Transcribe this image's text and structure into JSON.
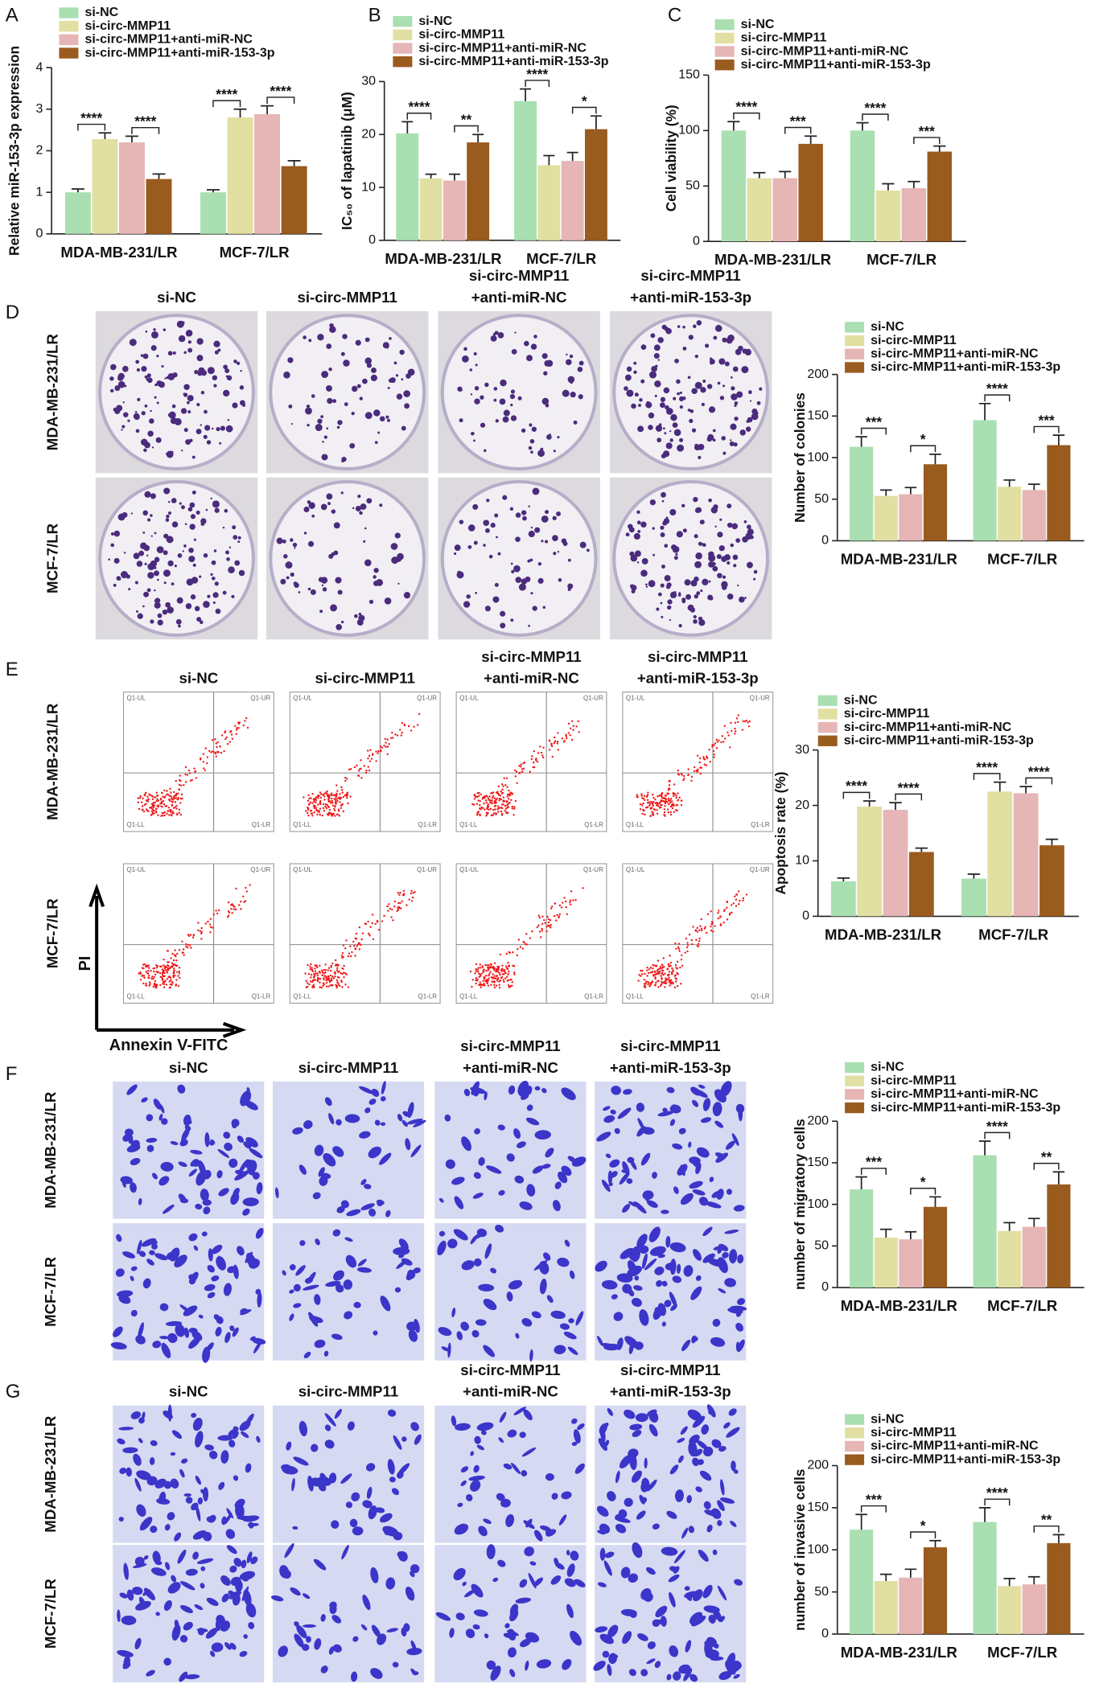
{
  "panel_labels": [
    "A",
    "B",
    "C",
    "D",
    "E",
    "F",
    "G"
  ],
  "chart_data": [
    {
      "type": "bar",
      "ylabel": "Relative miR-153-3p expression",
      "categories": [
        "MDA-MB-231/LR",
        "MCF-7/LR"
      ],
      "series": [
        {
          "name": "si-NC",
          "color": "#a9dfb1",
          "values": [
            1.0,
            1.0
          ],
          "errors": [
            0.08,
            0.06
          ]
        },
        {
          "name": "si-circ-MMP11",
          "color": "#e2dfa2",
          "values": [
            2.28,
            2.8
          ],
          "errors": [
            0.15,
            0.2
          ]
        },
        {
          "name": "si-circ-MMP11+anti-miR-NC",
          "color": "#e6b5b5",
          "values": [
            2.2,
            2.88
          ],
          "errors": [
            0.15,
            0.2
          ]
        },
        {
          "name": "si-circ-MMP11+anti-miR-153-3p",
          "color": "#9a5b1f",
          "values": [
            1.32,
            1.63
          ],
          "errors": [
            0.12,
            0.13
          ]
        }
      ],
      "ylim": [
        0,
        4
      ],
      "yticks": [
        0,
        1,
        2,
        3,
        4
      ],
      "significance": [
        [
          "****",
          "****"
        ],
        [
          "****",
          "****"
        ]
      ]
    },
    {
      "type": "bar",
      "ylabel": "IC₅₀ of lapatinib (μM)",
      "categories": [
        "MDA-MB-231/LR",
        "MCF-7/LR"
      ],
      "series": [
        {
          "name": "si-NC",
          "color": "#a9dfb1",
          "values": [
            20.2,
            26.3
          ],
          "errors": [
            2.2,
            2.3
          ]
        },
        {
          "name": "si-circ-MMP11",
          "color": "#e2dfa2",
          "values": [
            11.7,
            14.2
          ],
          "errors": [
            0.8,
            1.8
          ]
        },
        {
          "name": "si-circ-MMP11+anti-miR-NC",
          "color": "#e6b5b5",
          "values": [
            11.3,
            15.0
          ],
          "errors": [
            1.2,
            1.6
          ]
        },
        {
          "name": "si-circ-MMP11+anti-miR-153-3p",
          "color": "#9a5b1f",
          "values": [
            18.5,
            21.0
          ],
          "errors": [
            1.5,
            2.5
          ]
        }
      ],
      "ylim": [
        0,
        30
      ],
      "yticks": [
        0,
        10,
        20,
        30
      ],
      "significance": [
        [
          "****",
          "**"
        ],
        [
          "****",
          "*"
        ]
      ]
    },
    {
      "type": "bar",
      "ylabel": "Cell viability (%)",
      "categories": [
        "MDA-MB-231/LR",
        "MCF-7/LR"
      ],
      "series": [
        {
          "name": "si-NC",
          "color": "#a9dfb1",
          "values": [
            100,
            100
          ],
          "errors": [
            8,
            7
          ]
        },
        {
          "name": "si-circ-MMP11",
          "color": "#e2dfa2",
          "values": [
            57,
            46
          ],
          "errors": [
            5,
            6
          ]
        },
        {
          "name": "si-circ-MMP11+anti-miR-NC",
          "color": "#e6b5b5",
          "values": [
            57,
            48
          ],
          "errors": [
            6,
            6
          ]
        },
        {
          "name": "si-circ-MMP11+anti-miR-153-3p",
          "color": "#9a5b1f",
          "values": [
            88,
            81
          ],
          "errors": [
            7,
            5
          ]
        }
      ],
      "ylim": [
        0,
        150
      ],
      "yticks": [
        0,
        50,
        100,
        150
      ],
      "significance": [
        [
          "****",
          "***"
        ],
        [
          "****",
          "***"
        ]
      ]
    },
    {
      "type": "bar",
      "ylabel": "Number of colonies",
      "categories": [
        "MDA-MB-231/LR",
        "MCF-7/LR"
      ],
      "series": [
        {
          "name": "si-NC",
          "color": "#a9dfb1",
          "values": [
            113,
            145
          ],
          "errors": [
            12,
            20
          ]
        },
        {
          "name": "si-circ-MMP11",
          "color": "#e2dfa2",
          "values": [
            54,
            65
          ],
          "errors": [
            7,
            8
          ]
        },
        {
          "name": "si-circ-MMP11+anti-miR-NC",
          "color": "#e6b5b5",
          "values": [
            56,
            61
          ],
          "errors": [
            8,
            7
          ]
        },
        {
          "name": "si-circ-MMP11+anti-miR-153-3p",
          "color": "#9a5b1f",
          "values": [
            92,
            115
          ],
          "errors": [
            12,
            12
          ]
        }
      ],
      "ylim": [
        0,
        200
      ],
      "yticks": [
        0,
        50,
        100,
        150,
        200
      ],
      "significance": [
        [
          "***",
          "*"
        ],
        [
          "****",
          "***"
        ]
      ]
    },
    {
      "type": "bar",
      "ylabel": "Apoptosis rate (%)",
      "categories": [
        "MDA-MB-231/LR",
        "MCF-7/LR"
      ],
      "series": [
        {
          "name": "si-NC",
          "color": "#a9dfb1",
          "values": [
            6.3,
            6.8
          ],
          "errors": [
            0.6,
            0.8
          ]
        },
        {
          "name": "si-circ-MMP11",
          "color": "#e2dfa2",
          "values": [
            19.8,
            22.5
          ],
          "errors": [
            1.0,
            1.7
          ]
        },
        {
          "name": "si-circ-MMP11+anti-miR-NC",
          "color": "#e6b5b5",
          "values": [
            19.2,
            22.2
          ],
          "errors": [
            1.3,
            1.2
          ]
        },
        {
          "name": "si-circ-MMP11+anti-miR-153-3p",
          "color": "#9a5b1f",
          "values": [
            11.6,
            12.8
          ],
          "errors": [
            0.7,
            1.1
          ]
        }
      ],
      "ylim": [
        0,
        30
      ],
      "yticks": [
        0,
        10,
        20,
        30
      ],
      "significance": [
        [
          "****",
          "****"
        ],
        [
          "****",
          "****"
        ]
      ]
    },
    {
      "type": "bar",
      "ylabel": "number of migratory cells",
      "categories": [
        "MDA-MB-231/LR",
        "MCF-7/LR"
      ],
      "series": [
        {
          "name": "si-NC",
          "color": "#a9dfb1",
          "values": [
            118,
            159
          ],
          "errors": [
            15,
            17
          ]
        },
        {
          "name": "si-circ-MMP11",
          "color": "#e2dfa2",
          "values": [
            60,
            68
          ],
          "errors": [
            10,
            10
          ]
        },
        {
          "name": "si-circ-MMP11+anti-miR-NC",
          "color": "#e6b5b5",
          "values": [
            58,
            73
          ],
          "errors": [
            9,
            10
          ]
        },
        {
          "name": "si-circ-MMP11+anti-miR-153-3p",
          "color": "#9a5b1f",
          "values": [
            97,
            124
          ],
          "errors": [
            12,
            15
          ]
        }
      ],
      "ylim": [
        0,
        200
      ],
      "yticks": [
        0,
        50,
        100,
        150,
        200
      ],
      "significance": [
        [
          "***",
          "*"
        ],
        [
          "****",
          "**"
        ]
      ]
    },
    {
      "type": "bar",
      "ylabel": "number of invasive cells",
      "categories": [
        "MDA-MB-231/LR",
        "MCF-7/LR"
      ],
      "series": [
        {
          "name": "si-NC",
          "color": "#a9dfb1",
          "values": [
            124,
            133
          ],
          "errors": [
            18,
            17
          ]
        },
        {
          "name": "si-circ-MMP11",
          "color": "#e2dfa2",
          "values": [
            63,
            57
          ],
          "errors": [
            8,
            9
          ]
        },
        {
          "name": "si-circ-MMP11+anti-miR-NC",
          "color": "#e6b5b5",
          "values": [
            67,
            59
          ],
          "errors": [
            10,
            9
          ]
        },
        {
          "name": "si-circ-MMP11+anti-miR-153-3p",
          "color": "#9a5b1f",
          "values": [
            103,
            108
          ],
          "errors": [
            8,
            10
          ]
        }
      ],
      "ylim": [
        0,
        200
      ],
      "yticks": [
        0,
        50,
        100,
        150,
        200
      ],
      "significance": [
        [
          "***",
          "*"
        ],
        [
          "****",
          "**"
        ]
      ]
    }
  ],
  "image_panels": [
    {
      "columns": [
        [
          "si-NC"
        ],
        [
          "si-circ-MMP11"
        ],
        [
          "si-circ-MMP11",
          "+anti-miR-NC"
        ],
        [
          "si-circ-MMP11",
          "+anti-miR-153-3p"
        ]
      ],
      "rows": [
        "MDA-MB-231/LR",
        "MCF-7/LR"
      ]
    },
    {
      "columns": [
        [
          "si-NC"
        ],
        [
          "si-circ-MMP11"
        ],
        [
          "si-circ-MMP11",
          "+anti-miR-NC"
        ],
        [
          "si-circ-MMP11",
          "+anti-miR-153-3p"
        ]
      ],
      "rows": [
        "MDA-MB-231/LR",
        "MCF-7/LR"
      ],
      "quadrants": [
        "Q1-UL",
        "Q1-UR",
        "Q1-LL",
        "Q1-LR"
      ],
      "y_axis": "PI",
      "x_axis": "Annexin V-FITC"
    },
    {
      "columns": [
        [
          "si-NC"
        ],
        [
          "si-circ-MMP11"
        ],
        [
          "si-circ-MMP11",
          "+anti-miR-NC"
        ],
        [
          "si-circ-MMP11",
          "+anti-miR-153-3p"
        ]
      ],
      "rows": [
        "MDA-MB-231/LR",
        "MCF-7/LR"
      ]
    },
    {
      "columns": [
        [
          "si-NC"
        ],
        [
          "si-circ-MMP11"
        ],
        [
          "si-circ-MMP11",
          "+anti-miR-NC"
        ],
        [
          "si-circ-MMP11",
          "+anti-miR-153-3p"
        ]
      ],
      "rows": [
        "MDA-MB-231/LR",
        "MCF-7/LR"
      ]
    }
  ]
}
